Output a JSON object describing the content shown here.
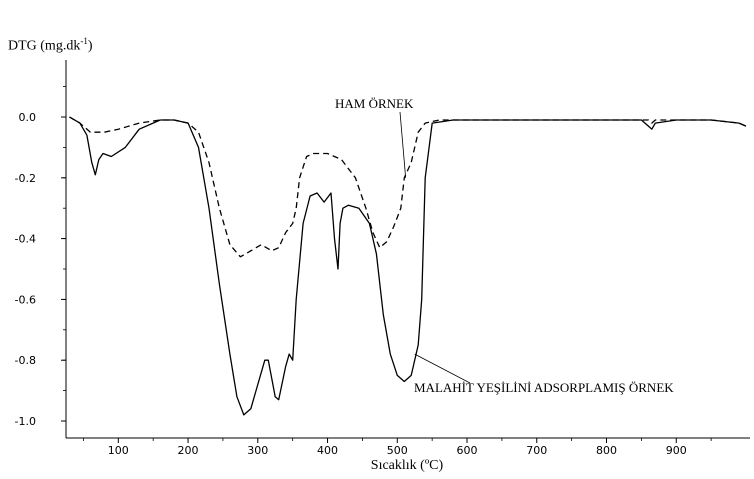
{
  "chart_data": {
    "type": "line",
    "ylabel_main": "DTG (mg.dk",
    "ylabel_sup": "-1",
    "ylabel_end": ")",
    "xlabel": "Sıcaklık (ºC)",
    "xlim": [
      25,
      1000
    ],
    "ylim": [
      -1.05,
      0.2
    ],
    "xticks": [
      100,
      200,
      300,
      400,
      500,
      600,
      700,
      800,
      900
    ],
    "yticks": [
      0.0,
      -0.2,
      -0.4,
      -0.6,
      -0.8,
      -1.0
    ],
    "ytick_labels": [
      "0.0",
      "-0.2",
      "-0.4",
      "-0.6",
      "-0.8",
      "-1.0"
    ],
    "series": [
      {
        "name": "HAM ÖRNEK",
        "style": "dashed",
        "x": [
          30,
          45,
          60,
          80,
          100,
          130,
          160,
          180,
          200,
          215,
          230,
          245,
          260,
          275,
          290,
          305,
          320,
          330,
          340,
          350,
          355,
          360,
          370,
          380,
          400,
          420,
          440,
          455,
          465,
          475,
          485,
          495,
          505,
          510,
          520,
          530,
          540,
          560,
          600,
          700,
          800,
          860,
          865,
          870,
          900,
          950,
          990,
          1000
        ],
        "y": [
          0.0,
          -0.02,
          -0.05,
          -0.05,
          -0.04,
          -0.02,
          -0.01,
          -0.01,
          -0.02,
          -0.05,
          -0.15,
          -0.3,
          -0.42,
          -0.46,
          -0.44,
          -0.42,
          -0.44,
          -0.43,
          -0.38,
          -0.35,
          -0.3,
          -0.2,
          -0.13,
          -0.12,
          -0.12,
          -0.14,
          -0.2,
          -0.3,
          -0.38,
          -0.43,
          -0.41,
          -0.36,
          -0.3,
          -0.2,
          -0.15,
          -0.05,
          -0.02,
          -0.01,
          -0.01,
          -0.01,
          -0.01,
          -0.01,
          -0.02,
          -0.01,
          -0.01,
          -0.01,
          -0.02,
          -0.03
        ]
      },
      {
        "name": "MALAHİT YEŞİLİNİ ADSORPLAMIŞ ÖRNEK",
        "style": "solid",
        "x": [
          30,
          45,
          55,
          62,
          67,
          72,
          78,
          90,
          110,
          130,
          160,
          180,
          200,
          215,
          230,
          245,
          260,
          270,
          280,
          290,
          300,
          310,
          315,
          325,
          330,
          340,
          345,
          350,
          355,
          365,
          375,
          385,
          395,
          405,
          410,
          415,
          418,
          422,
          430,
          445,
          460,
          470,
          480,
          490,
          500,
          510,
          520,
          530,
          535,
          540,
          550,
          580,
          650,
          750,
          850,
          860,
          865,
          870,
          900,
          950,
          990,
          1000
        ],
        "y": [
          0.0,
          -0.02,
          -0.06,
          -0.15,
          -0.19,
          -0.14,
          -0.12,
          -0.13,
          -0.1,
          -0.04,
          -0.01,
          -0.01,
          -0.02,
          -0.1,
          -0.3,
          -0.55,
          -0.78,
          -0.92,
          -0.98,
          -0.96,
          -0.88,
          -0.8,
          -0.8,
          -0.92,
          -0.93,
          -0.82,
          -0.78,
          -0.8,
          -0.6,
          -0.35,
          -0.26,
          -0.25,
          -0.28,
          -0.25,
          -0.4,
          -0.5,
          -0.35,
          -0.3,
          -0.29,
          -0.3,
          -0.35,
          -0.45,
          -0.65,
          -0.78,
          -0.85,
          -0.87,
          -0.85,
          -0.75,
          -0.6,
          -0.2,
          -0.02,
          -0.01,
          -0.01,
          -0.01,
          -0.01,
          -0.03,
          -0.04,
          -0.02,
          -0.01,
          -0.01,
          -0.02,
          -0.03
        ]
      }
    ],
    "annotations": [
      {
        "text": "HAM ÖRNEK",
        "points_to": [
          512,
          -0.2
        ]
      },
      {
        "text": "MALAHİT YEŞİLİNİ ADSORPLAMIŞ ÖRNEK",
        "points_to": [
          525,
          -0.78
        ]
      }
    ],
    "grid": false
  }
}
